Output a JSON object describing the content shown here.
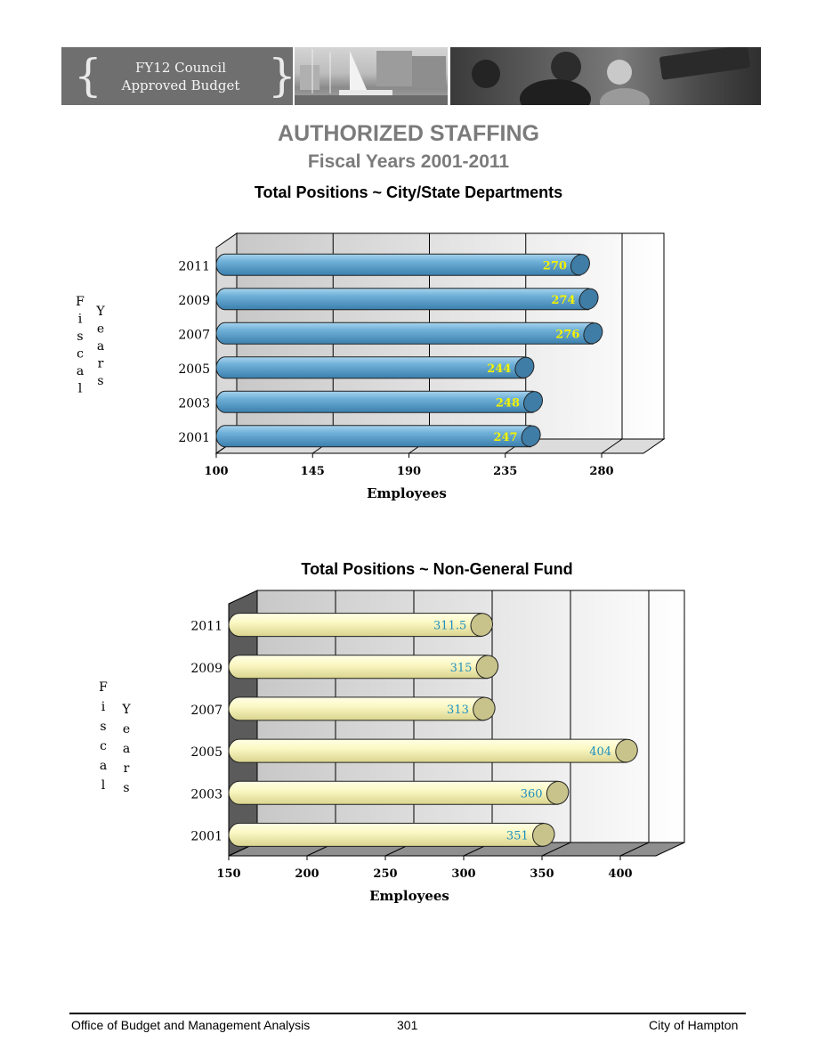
{
  "banner": {
    "brace_left": "{",
    "brace_right": "}",
    "line1": "FY12 Council",
    "line2": "Approved Budget"
  },
  "heading": {
    "title": "AUTHORIZED STAFFING",
    "subtitle": "Fiscal Years 2001-2011"
  },
  "chart_data": [
    {
      "type": "bar",
      "orientation": "horizontal",
      "title": "Total Positions ~ City/State Departments",
      "xlabel": "Employees",
      "ylabel": "Fiscal Years",
      "categories": [
        "2011",
        "2009",
        "2007",
        "2005",
        "2003",
        "2001"
      ],
      "values": [
        270,
        274,
        276,
        244,
        248,
        247
      ],
      "value_labels": [
        "270",
        "274",
        "276",
        "244",
        "248",
        "247"
      ],
      "xlim": [
        100,
        280
      ],
      "xticks": [
        100,
        145,
        190,
        235,
        280
      ],
      "grid": true,
      "colors": {
        "bar": "#5a9fc8",
        "label": "#f2f200"
      }
    },
    {
      "type": "bar",
      "orientation": "horizontal",
      "title": "Total Positions ~ Non-General Fund",
      "xlabel": "Employees",
      "ylabel": "Fiscal Years",
      "categories": [
        "2011",
        "2009",
        "2007",
        "2005",
        "2003",
        "2001"
      ],
      "values": [
        311.5,
        315,
        313,
        404,
        360,
        351
      ],
      "value_labels": [
        "311.5",
        "315",
        "313",
        "404",
        "360",
        "351"
      ],
      "xlim": [
        150,
        400
      ],
      "xticks": [
        150,
        200,
        250,
        300,
        350,
        400
      ],
      "grid": true,
      "colors": {
        "bar": "#fbf8c4",
        "label": "#1f8fc0"
      }
    }
  ],
  "footer": {
    "office": "Office of Budget and Management Analysis",
    "page": "301",
    "city": "City of Hampton"
  }
}
